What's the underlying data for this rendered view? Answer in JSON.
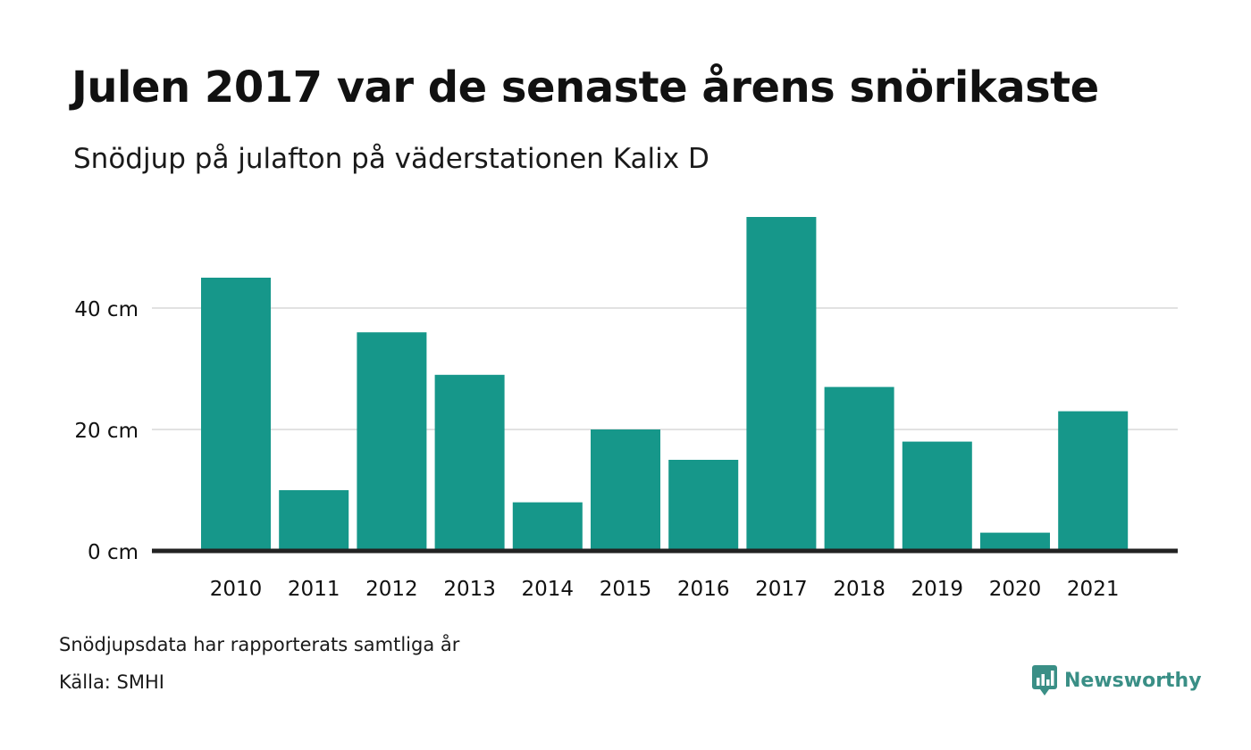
{
  "title": "Julen 2017 var de senaste årens snörikaste",
  "subtitle": "Snödjup på julafton på väderstationen Kalix D",
  "footnote": "Snödjupsdata har rapporterats samtliga år",
  "source": "Källa: SMHI",
  "brand": {
    "name": "Newsworthy",
    "icon": "newsworthy-logo-icon",
    "color": "#3a8f86"
  },
  "colors": {
    "bar": "#16978a",
    "grid": "#e2e2e2",
    "baseline": "#222222",
    "text": "#111111"
  },
  "chart_data": {
    "type": "bar",
    "categories": [
      "2010",
      "2011",
      "2012",
      "2013",
      "2014",
      "2015",
      "2016",
      "2017",
      "2018",
      "2019",
      "2020",
      "2021"
    ],
    "values": [
      45,
      10,
      36,
      29,
      8,
      20,
      15,
      55,
      27,
      18,
      3,
      23
    ],
    "unit": "cm",
    "yticks": [
      0,
      20,
      40
    ],
    "ytick_labels": [
      "0 cm",
      "20 cm",
      "40 cm"
    ],
    "ylim": [
      0,
      55
    ],
    "grid": true,
    "legend": "none",
    "xlabel": "",
    "ylabel": ""
  }
}
